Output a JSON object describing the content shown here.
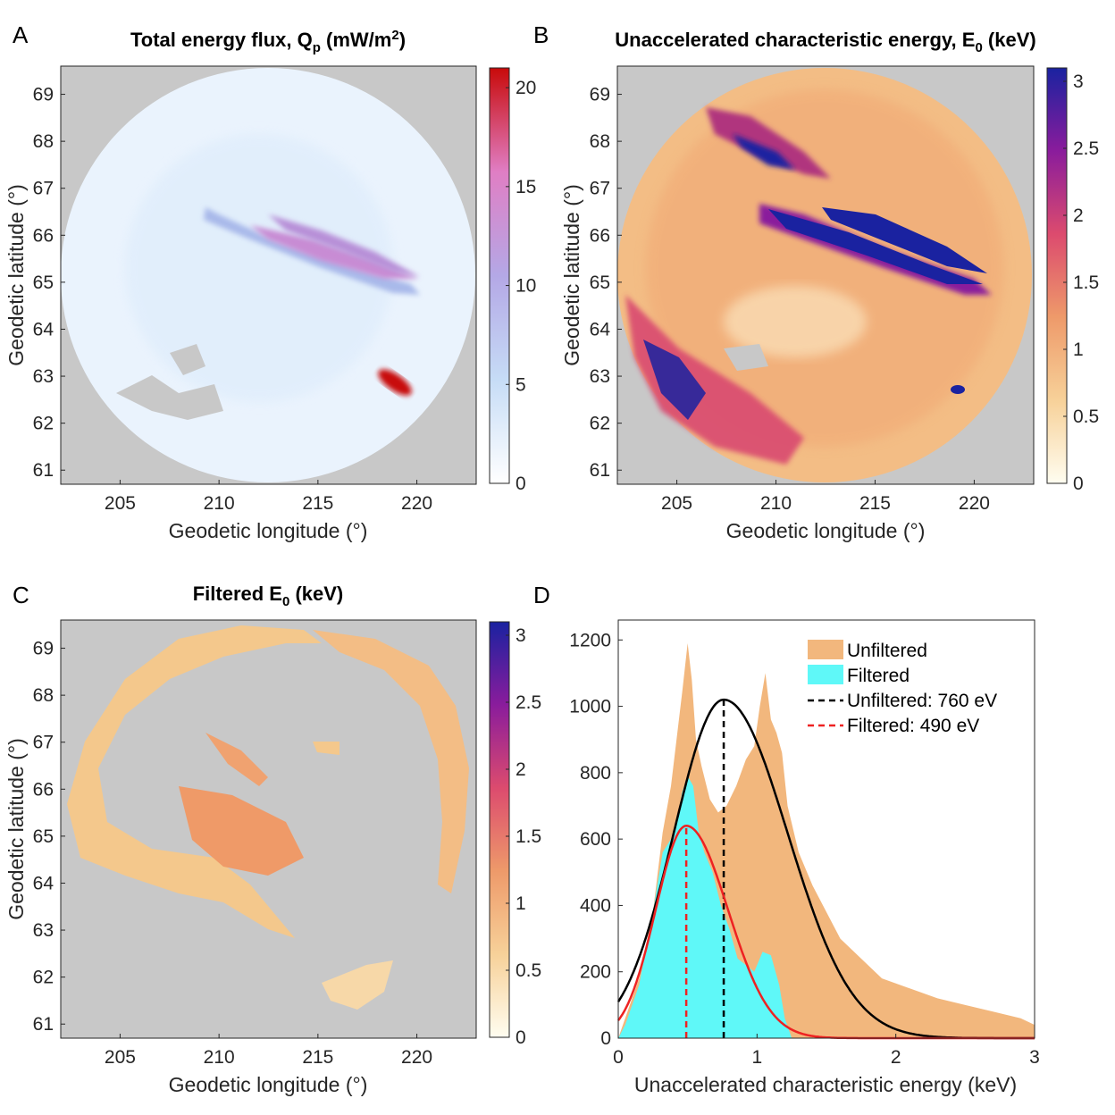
{
  "panels": {
    "A": {
      "letter": "A",
      "title_main": "Total energy flux, Q",
      "title_sub": "p",
      "title_tail": " (mW/m",
      "title_sup": "2",
      "title_end": ")",
      "xlabel": "Geodetic longitude (°)",
      "ylabel": "Geodetic latitude (°)",
      "xticks": [
        "205",
        "210",
        "215",
        "220"
      ],
      "yticks": [
        "61",
        "62",
        "63",
        "64",
        "65",
        "66",
        "67",
        "68",
        "69"
      ],
      "cticks": [
        "0",
        "5",
        "10",
        "15",
        "20"
      ],
      "cmax": 21,
      "cmap": [
        "#ffffff",
        "#c6dcf6",
        "#b4a8e6",
        "#e07ec4",
        "#c80a0a"
      ]
    },
    "B": {
      "letter": "B",
      "title_main": "Unaccelerated characteristic energy, E",
      "title_sub": "0",
      "title_tail": " (keV)",
      "xlabel": "Geodetic longitude (°)",
      "ylabel": "Geodetic latitude (°)",
      "xticks": [
        "205",
        "210",
        "215",
        "220"
      ],
      "yticks": [
        "61",
        "62",
        "63",
        "64",
        "65",
        "66",
        "67",
        "68",
        "69"
      ],
      "cticks": [
        "0",
        "0.5",
        "1",
        "1.5",
        "2",
        "2.5",
        "3"
      ],
      "cmax": 3.1,
      "cmap": [
        "#fffdf0",
        "#f7d199",
        "#ee9a6a",
        "#dc4b6e",
        "#8a1c9c",
        "#1a22a0"
      ]
    },
    "C": {
      "letter": "C",
      "title_main": "Filtered E",
      "title_sub": "0",
      "title_tail": " (keV)",
      "xlabel": "Geodetic longitude (°)",
      "ylabel": "Geodetic latitude (°)",
      "xticks": [
        "205",
        "210",
        "215",
        "220"
      ],
      "yticks": [
        "61",
        "62",
        "63",
        "64",
        "65",
        "66",
        "67",
        "68",
        "69"
      ],
      "cticks": [
        "0",
        "0.5",
        "1",
        "1.5",
        "2",
        "2.5",
        "3"
      ],
      "cmax": 3.1,
      "cmap": [
        "#fffdf0",
        "#f7d199",
        "#ee9a6a",
        "#dc4b6e",
        "#8a1c9c",
        "#1a22a0"
      ]
    },
    "D": {
      "letter": "D",
      "xlabel": "Unaccelerated characteristic energy (keV)",
      "xticks": [
        "0",
        "1",
        "2",
        "3"
      ],
      "yticks": [
        "0",
        "200",
        "400",
        "600",
        "800",
        "1000",
        "1200"
      ]
    }
  },
  "colors": {
    "background_mask": "#c8c8c8",
    "unfiltered": "#f2b77d",
    "filtered": "#5ff8f8",
    "fit_unfiltered": "#000000",
    "fit_filtered": "#ee2222"
  },
  "legend": {
    "unfiltered": "Unfiltered",
    "filtered": "Filtered",
    "fit_unfiltered": "Unfiltered: 760 eV",
    "fit_filtered": "Filtered: 490 eV"
  },
  "chart_data": [
    {
      "panel": "A",
      "type": "heatmap",
      "title": "Total energy flux, Qp (mW/m2)",
      "xlabel": "Geodetic longitude (°)",
      "ylabel": "Geodetic latitude (°)",
      "xlim": [
        202,
        223
      ],
      "ylim": [
        60.7,
        69.6
      ],
      "clim": [
        0,
        21
      ],
      "colorbar_label": "",
      "features": "circular all-sky field of view, near-uniform low flux with thin arcs near 66-65 deg lat and a bright spot near 219 E, 62.8 N"
    },
    {
      "panel": "B",
      "type": "heatmap",
      "title": "Unaccelerated characteristic energy, E0 (keV)",
      "xlabel": "Geodetic longitude (°)",
      "ylabel": "Geodetic latitude (°)",
      "xlim": [
        202,
        223
      ],
      "ylim": [
        60.7,
        69.6
      ],
      "clim": [
        0,
        3.1
      ]
    },
    {
      "panel": "C",
      "type": "heatmap",
      "title": "Filtered E0 (keV)",
      "xlabel": "Geodetic longitude (°)",
      "ylabel": "Geodetic latitude (°)",
      "xlim": [
        202,
        223
      ],
      "ylim": [
        60.7,
        69.6
      ],
      "clim": [
        0,
        3.1
      ]
    },
    {
      "panel": "D",
      "type": "histogram",
      "xlabel": "Unaccelerated characteristic energy (keV)",
      "ylabel": "",
      "xlim": [
        0,
        3
      ],
      "ylim": [
        0,
        1260
      ],
      "series": [
        {
          "name": "Unfiltered",
          "type": "histogram",
          "x": [
            0.05,
            0.15,
            0.25,
            0.32,
            0.38,
            0.42,
            0.46,
            0.5,
            0.53,
            0.56,
            0.6,
            0.66,
            0.72,
            0.78,
            0.85,
            0.92,
            0.98,
            1.02,
            1.06,
            1.1,
            1.14,
            1.18,
            1.22,
            1.3,
            1.4,
            1.5,
            1.6,
            1.75,
            1.9,
            2.1,
            2.3,
            2.5,
            2.7,
            2.9,
            3.0
          ],
          "values": [
            60,
            180,
            380,
            620,
            760,
            900,
            1040,
            1190,
            1080,
            900,
            820,
            720,
            680,
            700,
            760,
            840,
            880,
            1000,
            1100,
            960,
            920,
            860,
            700,
            560,
            460,
            380,
            300,
            240,
            180,
            150,
            120,
            100,
            80,
            60,
            40
          ]
        },
        {
          "name": "Filtered",
          "type": "histogram",
          "x": [
            0.05,
            0.15,
            0.25,
            0.32,
            0.38,
            0.42,
            0.46,
            0.5,
            0.54,
            0.58,
            0.62,
            0.68,
            0.74,
            0.8,
            0.86,
            0.92,
            0.98,
            1.04,
            1.1,
            1.16,
            1.2,
            1.25
          ],
          "values": [
            40,
            160,
            380,
            560,
            600,
            640,
            740,
            790,
            760,
            620,
            560,
            500,
            400,
            330,
            240,
            220,
            200,
            260,
            250,
            160,
            60,
            0
          ]
        },
        {
          "name": "Unfiltered: 760 eV",
          "type": "fit",
          "peak_x": 0.76,
          "peak_y": 1020,
          "line_width_left": 0.36,
          "line_width_right": 0.46
        },
        {
          "name": "Filtered: 490 eV",
          "type": "fit",
          "peak_x": 0.49,
          "peak_y": 640,
          "line_width_left": 0.22,
          "line_width_right": 0.3
        }
      ]
    }
  ]
}
